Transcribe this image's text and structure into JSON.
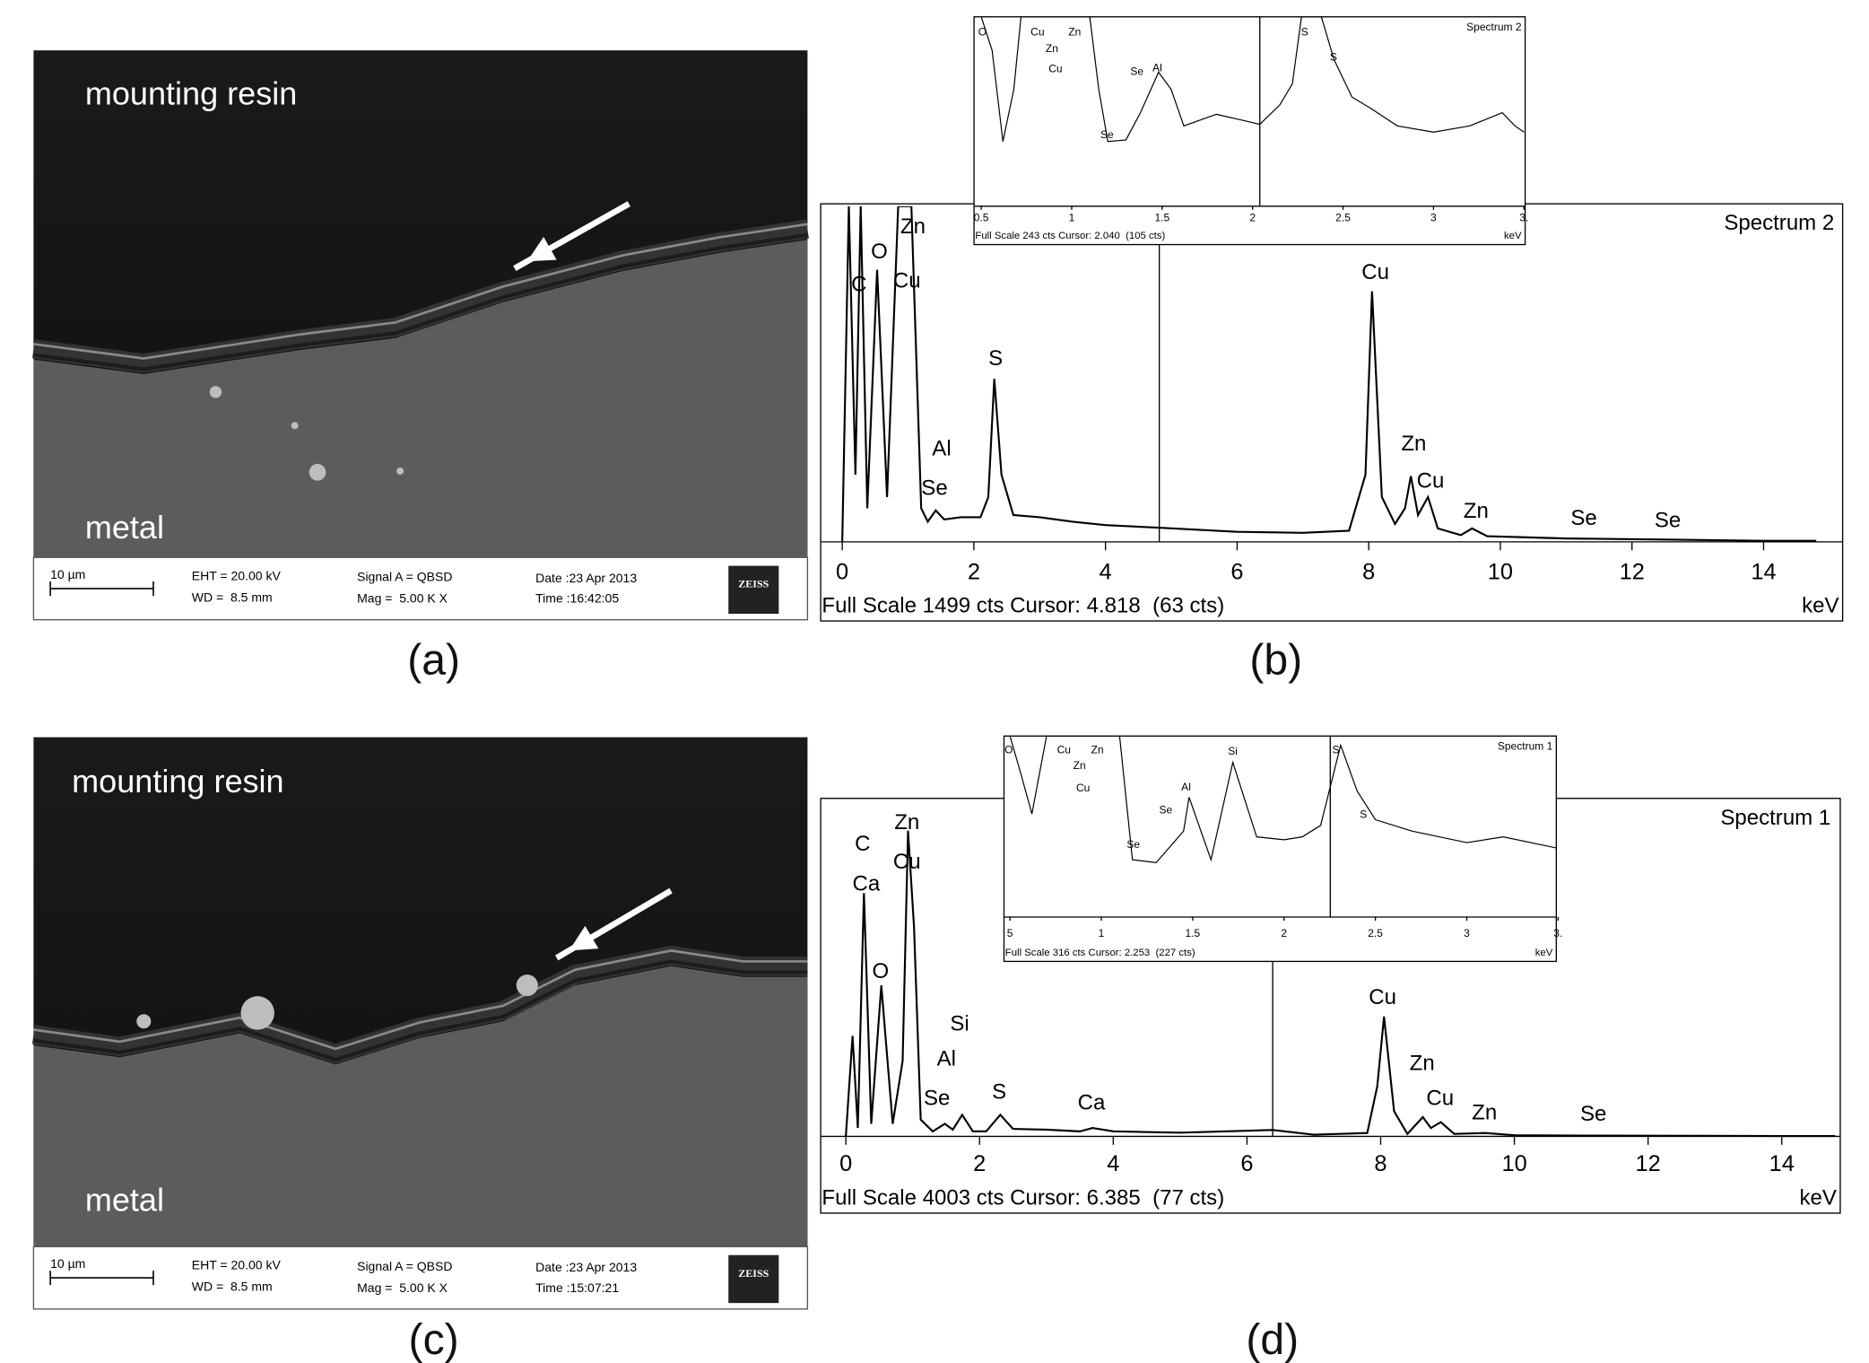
{
  "sem_images": [
    {
      "caption": "(a)",
      "top_label": "mounting resin",
      "bottom_label": "metal",
      "scale_bar": "10 µm",
      "eht": "EHT = 20.00 kV",
      "wd": "WD =  8.5 mm",
      "signal": "Signal A = QBSD",
      "mag": "Mag =  5.00 K X",
      "date": "Date :23 Apr 2013",
      "time": "Time :16:42:05",
      "logo": "ZEISS"
    },
    {
      "caption": "(c)",
      "top_label": "mounting resin",
      "bottom_label": "metal",
      "scale_bar": "10 µm",
      "eht": "EHT = 20.00 kV",
      "wd": "WD =  8.5 mm",
      "signal": "Signal A = QBSD",
      "mag": "Mag =  5.00 K X",
      "date": "Date :23 Apr 2013",
      "time": "Time :15:07:21",
      "logo": "ZEISS"
    }
  ],
  "chart_data": [
    {
      "type": "line",
      "caption": "(b)",
      "title": "Spectrum 2",
      "footer": "Full Scale 1499 cts Cursor: 4.818  (63 cts)",
      "xlabel": "keV",
      "cursor": 4.818,
      "xlim": [
        0,
        14.8
      ],
      "ylim": [
        0,
        1499
      ],
      "xticks": [
        0,
        2,
        4,
        6,
        8,
        10,
        12,
        14
      ],
      "color": "#000000",
      "x": [
        0,
        0.1,
        0.2,
        0.28,
        0.38,
        0.53,
        0.68,
        0.85,
        0.93,
        1.05,
        1.2,
        1.3,
        1.42,
        1.55,
        1.8,
        2.1,
        2.22,
        2.31,
        2.42,
        2.6,
        3.0,
        3.5,
        4.0,
        4.8,
        6,
        7,
        7.7,
        7.95,
        8.05,
        8.2,
        8.4,
        8.55,
        8.64,
        8.75,
        8.9,
        9.05,
        9.4,
        9.57,
        9.8,
        11,
        12.5,
        14,
        14.8
      ],
      "values": [
        0,
        1499,
        300,
        1499,
        150,
        1215,
        200,
        1499,
        1499,
        1499,
        150,
        90,
        140,
        100,
        110,
        110,
        200,
        728,
        300,
        120,
        110,
        90,
        75,
        63,
        45,
        40,
        50,
        300,
        1119,
        200,
        80,
        150,
        294,
        120,
        200,
        60,
        30,
        60,
        25,
        15,
        10,
        5,
        5
      ],
      "annotations": [
        "C",
        "O",
        "Zn",
        "Cu",
        "S",
        "Al",
        "Se",
        "Cu",
        "Zn",
        "Cu",
        "Zn",
        "Se",
        "Se"
      ]
    },
    {
      "type": "line",
      "title": "Spectrum 2",
      "footer": "Full Scale 243 cts Cursor: 2.040  (105 cts)",
      "xlabel": "keV",
      "cursor": 2.04,
      "xlim": [
        0.46,
        3.52
      ],
      "ylim": [
        0,
        243
      ],
      "xticks": [
        0.5,
        1,
        1.5,
        2,
        2.5,
        3,
        {
          "value": 3.5,
          "label": "3."
        }
      ],
      "color": "#000000",
      "x": [
        0.5,
        0.56,
        0.62,
        0.68,
        0.72,
        1.1,
        1.15,
        1.2,
        1.3,
        1.38,
        1.48,
        1.55,
        1.62,
        1.8,
        1.95,
        2.04,
        2.15,
        2.22,
        2.27,
        2.38,
        2.45,
        2.55,
        2.65,
        2.8,
        3.0,
        3.2,
        3.38,
        3.45,
        3.5
      ],
      "values": [
        243,
        200,
        83,
        150,
        243,
        243,
        150,
        83,
        85,
        120,
        172,
        150,
        103,
        118,
        110,
        105,
        130,
        157,
        243,
        243,
        188,
        140,
        126,
        103,
        95,
        103,
        120,
        103,
        95
      ],
      "annotations": [
        "O",
        "Cu",
        "Zn",
        "Zn",
        "Cu",
        "Se",
        "Al",
        "Se",
        "S",
        "S"
      ]
    },
    {
      "type": "line",
      "caption": "(d)",
      "title": "Spectrum 1",
      "footer": "Full Scale 4003 cts Cursor: 6.385  (77 cts)",
      "xlabel": "keV",
      "cursor": 6.385,
      "xlim": [
        0,
        14.8
      ],
      "ylim": [
        0,
        4003
      ],
      "xticks": [
        0,
        2,
        4,
        6,
        8,
        10,
        12,
        14
      ],
      "color": "#000000",
      "x": [
        0,
        0.1,
        0.18,
        0.27,
        0.38,
        0.53,
        0.7,
        0.85,
        0.93,
        1.02,
        1.12,
        1.3,
        1.48,
        1.6,
        1.74,
        1.9,
        2.1,
        2.31,
        2.5,
        3.0,
        3.5,
        3.69,
        4.0,
        5,
        6.385,
        7,
        7.8,
        7.95,
        8.05,
        8.2,
        8.4,
        8.63,
        8.75,
        8.9,
        9.1,
        9.57,
        10,
        11,
        12,
        14,
        14.8
      ],
      "values": [
        0,
        1200,
        100,
        2902,
        150,
        1801,
        150,
        900,
        3645,
        2500,
        200,
        60,
        150,
        80,
        257,
        60,
        60,
        257,
        90,
        80,
        60,
        100,
        60,
        45,
        77,
        20,
        40,
        600,
        1430,
        300,
        30,
        230,
        100,
        170,
        30,
        40,
        15,
        10,
        8,
        5,
        5
      ],
      "annotations": [
        "C",
        "Ca",
        "Zn",
        "Cu",
        "O",
        "Si",
        "Al",
        "Se",
        "S",
        "Ca",
        "Cu",
        "Zn",
        "Cu",
        "Zn",
        "Se"
      ]
    },
    {
      "type": "line",
      "title": "Spectrum 1",
      "footer": "Full Scale 316 cts Cursor: 2.253  (227 cts)",
      "xlabel": "keV",
      "cursor": 2.253,
      "xlim": [
        0.47,
        3.53
      ],
      "ylim": [
        0,
        316
      ],
      "xticks": [
        {
          "value": 0.5,
          "label": "5"
        },
        1,
        1.5,
        2,
        2.5,
        3,
        {
          "value": 3.5,
          "label": "3."
        }
      ],
      "color": "#000000",
      "x": [
        0.5,
        0.56,
        0.62,
        0.7,
        1.1,
        1.17,
        1.3,
        1.45,
        1.48,
        1.6,
        1.72,
        1.85,
        2.0,
        2.1,
        2.2,
        2.253,
        2.31,
        2.4,
        2.5,
        2.7,
        3.0,
        3.2,
        3.5
      ],
      "values": [
        316,
        250,
        180,
        316,
        316,
        100,
        95,
        150,
        209,
        100,
        270,
        140,
        135,
        140,
        160,
        227,
        300,
        220,
        170,
        150,
        130,
        140,
        120
      ],
      "annotations": [
        "O",
        "Cu",
        "Zn",
        "Zn",
        "Cu",
        "Se",
        "Al",
        "Si",
        "Se",
        "S",
        "S"
      ]
    }
  ]
}
